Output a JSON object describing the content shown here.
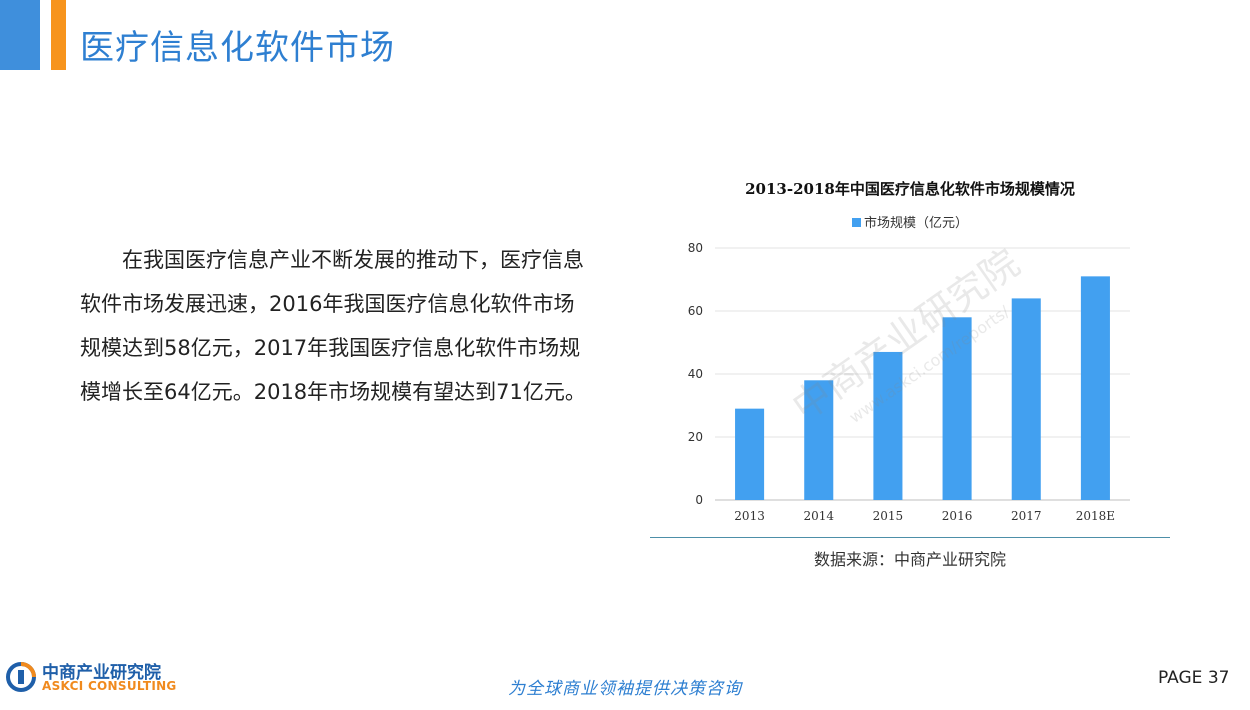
{
  "header": {
    "title": "医疗信息化软件市场"
  },
  "body": {
    "paragraph": "在我国医疗信息产业不断发展的推动下，医疗信息软件市场发展迅速，2016年我国医疗信息化软件市场规模达到58亿元，2017年我国医疗信息化软件市场规模增长至64亿元。2018年市场规模有望达到71亿元。"
  },
  "chart_data": {
    "type": "bar",
    "title": "2013-2018年中国医疗信息化软件市场规模情况",
    "categories": [
      "2013",
      "2014",
      "2015",
      "2016",
      "2017",
      "2018E"
    ],
    "series": [
      {
        "name": "市场规模（亿元）",
        "values": [
          29,
          38,
          47,
          58,
          64,
          71
        ]
      }
    ],
    "yticks": [
      "0",
      "20",
      "40",
      "60",
      "80"
    ],
    "ylim": [
      0,
      80
    ],
    "xlabel": "",
    "ylabel": "",
    "grid": true,
    "legend": "top",
    "color": "#42a0f0"
  },
  "chart_source": "数据来源：中商产业研究院",
  "watermark": {
    "cn": "中商产业研究院",
    "url": "www.askci.com/reports/"
  },
  "footer": {
    "logo_cn": "中商产业研究院",
    "logo_en": "ASKCI CONSULTING",
    "slogan": "为全球商业领袖提供决策咨询",
    "page": "PAGE  37"
  },
  "colors": {
    "accent_blue": "#3f8fdc",
    "accent_orange": "#f7941d",
    "title": "#2e7fd1",
    "bar": "#42a0f0"
  }
}
